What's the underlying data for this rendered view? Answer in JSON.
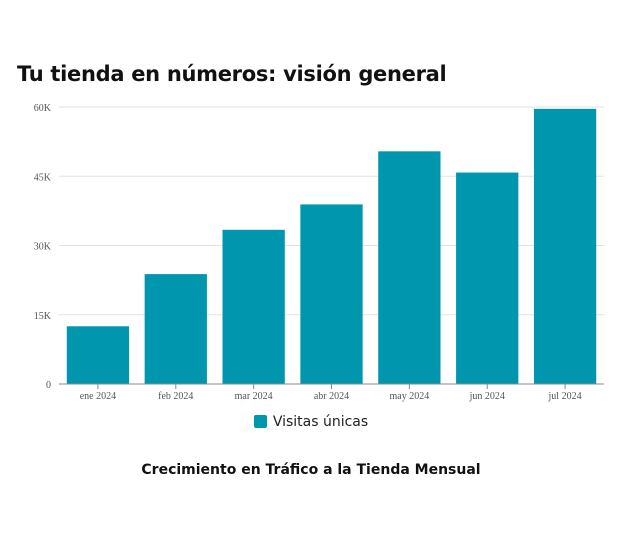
{
  "chart_data": {
    "type": "bar",
    "title": "Tu tienda en números: visión general",
    "caption": "Crecimiento en Tráfico a la Tienda Mensual",
    "categories": [
      "ene 2024",
      "feb 2024",
      "mar 2024",
      "abr 2024",
      "may 2024",
      "jun 2024",
      "jul 2024"
    ],
    "series": [
      {
        "name": "Visitas únicas",
        "values": [
          12500,
          23800,
          33400,
          38900,
          50400,
          45800,
          59600
        ],
        "color": "#0096ae"
      }
    ],
    "yticks": [
      0,
      15000,
      30000,
      45000,
      60000
    ],
    "ytick_labels": [
      "0",
      "15K",
      "30K",
      "45K",
      "60K"
    ],
    "ylim": [
      0,
      60000
    ],
    "xlabel": "",
    "ylabel": "",
    "grid": true,
    "legend": "bottom-center"
  }
}
